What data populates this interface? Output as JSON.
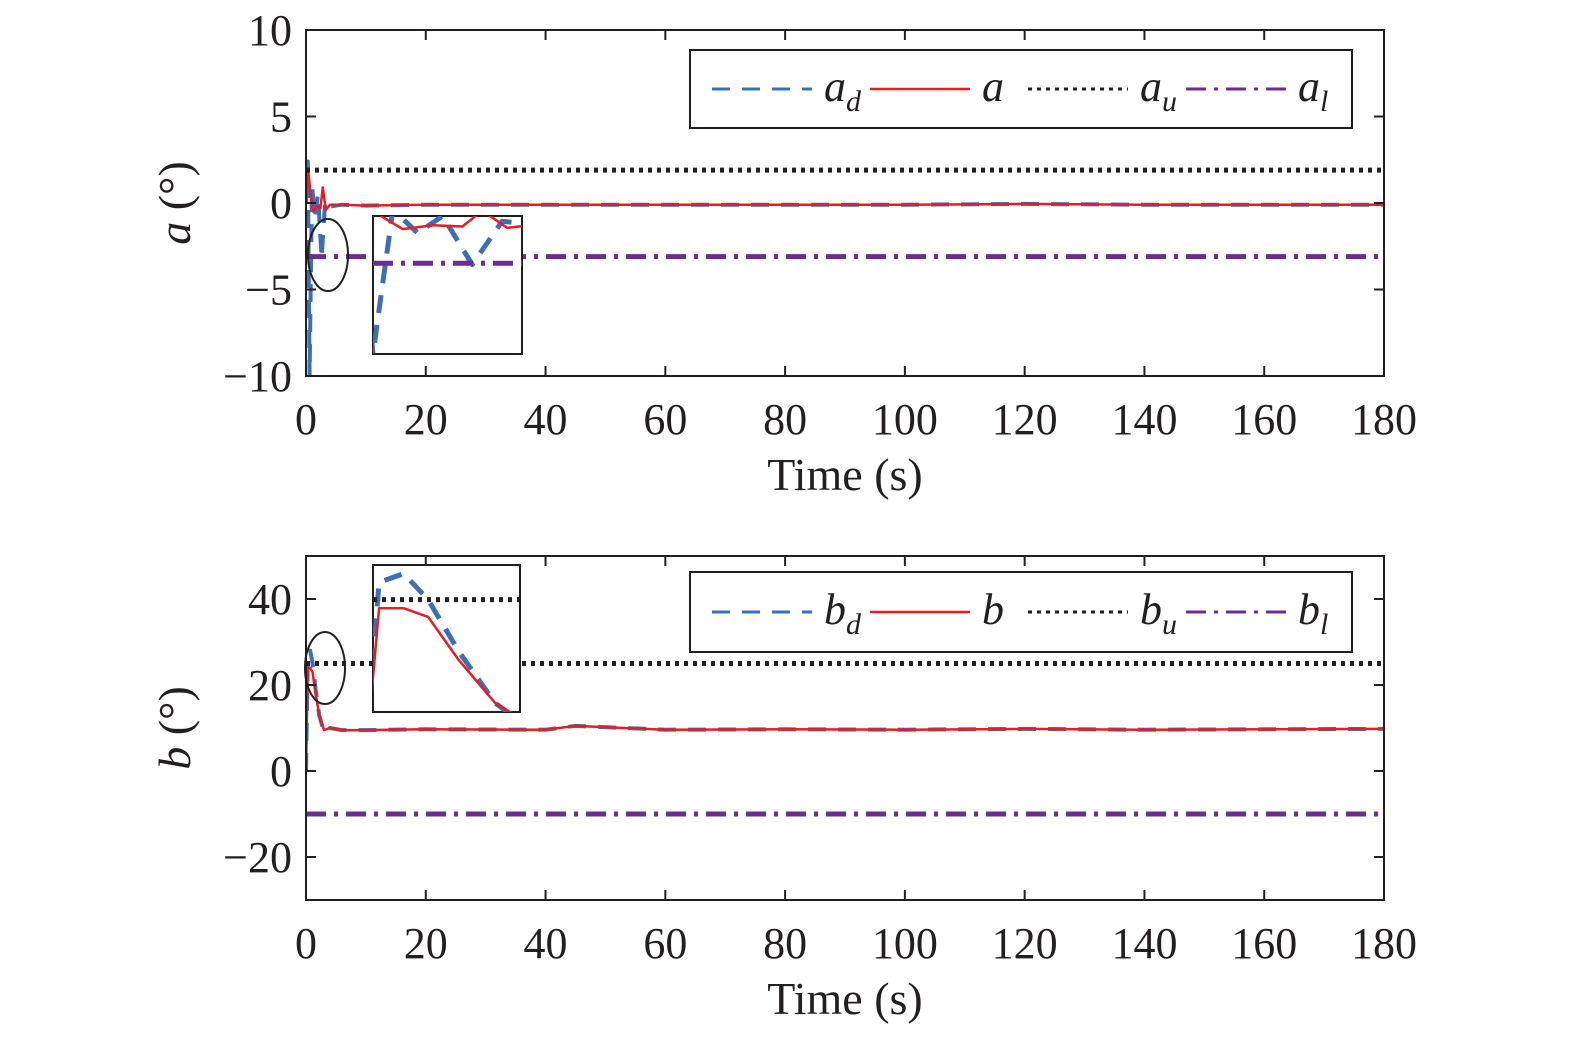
{
  "chart_data": [
    {
      "type": "line",
      "panel": "a",
      "xlabel": "Time (s)",
      "ylabel_var": "a",
      "ylabel_unit": " (°)",
      "xlim": [
        0,
        180
      ],
      "ylim": [
        -10,
        10
      ],
      "xticks": [
        0,
        20,
        40,
        60,
        80,
        100,
        120,
        140,
        160,
        180
      ],
      "yticks": [
        10,
        5,
        0,
        -5,
        -10
      ],
      "xtick_labels": [
        "0",
        "20",
        "40",
        "60",
        "80",
        "100",
        "120",
        "140",
        "160",
        "180"
      ],
      "ytick_labels": [
        "10",
        "5",
        "0",
        "−5",
        "−10"
      ],
      "legend_placement": "top-right",
      "series": [
        {
          "name": "a_d",
          "label_main": "a",
          "label_sub": "d",
          "color": "#3b6fb6",
          "style": "dashed",
          "x": [
            0,
            0.3,
            0.6,
            1.0,
            1.5,
            2.0,
            2.6,
            3.2,
            4.0,
            6,
            10,
            20,
            40,
            60,
            80,
            100,
            120,
            140,
            160,
            180
          ],
          "y": [
            0,
            2.4,
            -10,
            1.0,
            -0.8,
            0.5,
            -3.2,
            0.1,
            -0.2,
            -0.1,
            -0.15,
            -0.1,
            -0.1,
            -0.1,
            -0.1,
            -0.1,
            -0.05,
            -0.1,
            -0.1,
            -0.1
          ]
        },
        {
          "name": "a",
          "label_main": "a",
          "label_sub": "",
          "color": "#e31e25",
          "style": "solid",
          "x": [
            0,
            0.4,
            0.8,
            1.2,
            1.8,
            2.4,
            2.8,
            3.3,
            4.0,
            6,
            10,
            20,
            40,
            60,
            80,
            100,
            120,
            140,
            160,
            180
          ],
          "y": [
            0,
            1.8,
            0.4,
            -0.5,
            -0.2,
            -0.3,
            0.9,
            -0.4,
            -0.1,
            -0.1,
            -0.15,
            -0.1,
            -0.1,
            -0.1,
            -0.1,
            -0.1,
            -0.05,
            -0.1,
            -0.1,
            -0.1
          ]
        },
        {
          "name": "a_u",
          "label_main": "a",
          "label_sub": "u",
          "color": "#231f20",
          "style": "dotted",
          "x": [
            0,
            180
          ],
          "y": [
            1.9,
            1.9
          ]
        },
        {
          "name": "a_l",
          "label_main": "a",
          "label_sub": "l",
          "color": "#6a2d91",
          "style": "dashdot",
          "x": [
            0,
            180
          ],
          "y": [
            -3.1,
            -3.1
          ]
        }
      ]
    },
    {
      "type": "line",
      "panel": "b",
      "xlabel": "Time (s)",
      "ylabel_var": "b",
      "ylabel_unit": " (°)",
      "xlim": [
        0,
        180
      ],
      "ylim": [
        -30,
        50
      ],
      "xticks": [
        0,
        20,
        40,
        60,
        80,
        100,
        120,
        140,
        160,
        180
      ],
      "yticks": [
        40,
        20,
        0,
        -20
      ],
      "xtick_labels": [
        "0",
        "20",
        "40",
        "60",
        "80",
        "100",
        "120",
        "140",
        "160",
        "180"
      ],
      "ytick_labels": [
        "40",
        "20",
        "0",
        "−20"
      ],
      "legend_placement": "top-right",
      "series": [
        {
          "name": "b_d",
          "label_main": "b",
          "label_sub": "d",
          "color": "#3b6fb6",
          "style": "dashed",
          "x": [
            0,
            0.3,
            0.7,
            1.1,
            1.6,
            2.2,
            3.0,
            4.0,
            6,
            10,
            20,
            40,
            45,
            60,
            80,
            100,
            120,
            140,
            160,
            180
          ],
          "y": [
            0,
            27,
            28,
            25,
            19,
            13,
            9,
            10,
            9.5,
            9.5,
            9.7,
            9.6,
            10.5,
            9.6,
            9.7,
            9.6,
            9.8,
            9.6,
            9.7,
            9.8
          ]
        },
        {
          "name": "b",
          "label_main": "b",
          "label_sub": "",
          "color": "#e31e25",
          "style": "solid",
          "x": [
            0,
            0.3,
            0.7,
            1.1,
            1.6,
            2.2,
            3.0,
            4.0,
            6,
            10,
            20,
            40,
            45,
            60,
            80,
            100,
            120,
            140,
            160,
            180
          ],
          "y": [
            0,
            24,
            24,
            23,
            18,
            13,
            9.5,
            10,
            9.5,
            9.5,
            9.7,
            9.6,
            10.5,
            9.6,
            9.7,
            9.6,
            9.8,
            9.6,
            9.7,
            9.8
          ]
        },
        {
          "name": "b_u",
          "label_main": "b",
          "label_sub": "u",
          "color": "#231f20",
          "style": "dotted",
          "x": [
            0,
            180
          ],
          "y": [
            25,
            25
          ]
        },
        {
          "name": "b_l",
          "label_main": "b",
          "label_sub": "l",
          "color": "#6a2d91",
          "style": "dashdot",
          "x": [
            0,
            180
          ],
          "y": [
            -10,
            -10
          ]
        }
      ]
    }
  ]
}
